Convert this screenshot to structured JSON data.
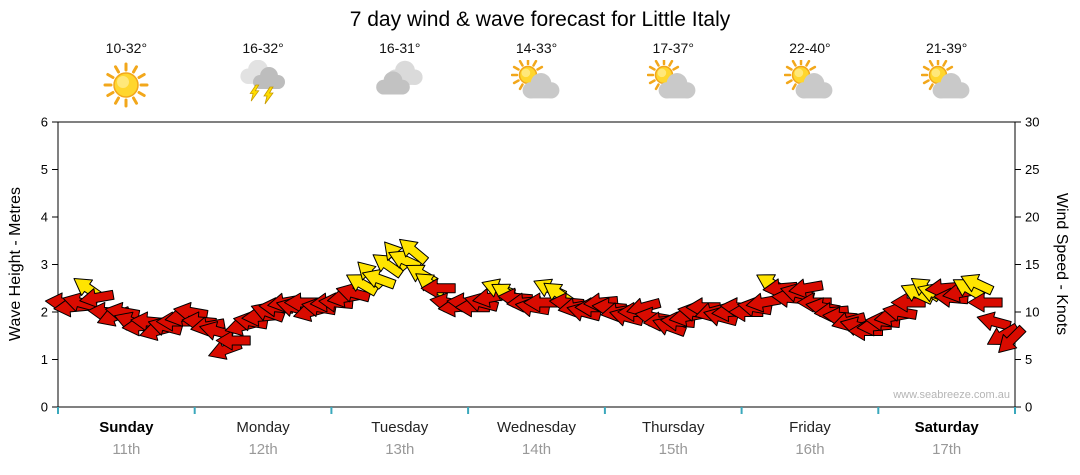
{
  "title": "7 day wind & wave forecast for Little Italy",
  "watermark": "www.seabreeze.com.au",
  "days": [
    {
      "name": "Sunday",
      "date": "11th",
      "temp": "10-32°",
      "icon": "sunny",
      "weekend": true
    },
    {
      "name": "Monday",
      "date": "12th",
      "temp": "16-32°",
      "icon": "storm",
      "weekend": false
    },
    {
      "name": "Tuesday",
      "date": "13th",
      "temp": "16-31°",
      "icon": "cloudy",
      "weekend": false
    },
    {
      "name": "Wednesday",
      "date": "14th",
      "temp": "14-33°",
      "icon": "partly-cloudy",
      "weekend": false
    },
    {
      "name": "Thursday",
      "date": "15th",
      "temp": "17-37°",
      "icon": "partly-cloudy",
      "weekend": false
    },
    {
      "name": "Friday",
      "date": "16th",
      "temp": "22-40°",
      "icon": "partly-cloudy",
      "weekend": false
    },
    {
      "name": "Saturday",
      "date": "17th",
      "temp": "21-39°",
      "icon": "partly-cloudy",
      "weekend": true
    }
  ],
  "chart_data": {
    "type": "scatter",
    "title": "7 day wind & wave forecast for Little Italy",
    "x_categories": [
      "Sunday 11th",
      "Monday 12th",
      "Tuesday 13th",
      "Wednesday 14th",
      "Thursday 15th",
      "Friday 16th",
      "Saturday 17th"
    ],
    "left_axis": {
      "label": "Wave Height - Metres",
      "min": 0,
      "max": 6,
      "ticks": [
        0,
        1,
        2,
        3,
        4,
        5,
        6
      ]
    },
    "right_axis": {
      "label": "Wind Speed - Knots",
      "min": 0,
      "max": 30,
      "ticks": [
        0,
        5,
        10,
        15,
        20,
        25,
        30
      ]
    },
    "grid": false,
    "legend": "none",
    "series_unit": "knots",
    "colors": {
      "red": "#D90B00",
      "yellow": "#FFE400",
      "day_tick": "#3AA8BC"
    },
    "points_per_day": 16,
    "points_format": [
      "wind_speed_knots",
      "arrow_rotation_deg",
      "color_index_0red_1yellow"
    ],
    "points": [
      [
        11,
        185,
        0
      ],
      [
        10.5,
        175,
        0
      ],
      [
        11,
        195,
        0
      ],
      [
        12.5,
        215,
        1
      ],
      [
        11.5,
        170,
        0
      ],
      [
        10,
        185,
        0
      ],
      [
        9.5,
        160,
        0
      ],
      [
        10,
        190,
        0
      ],
      [
        9,
        200,
        0
      ],
      [
        8.5,
        175,
        0
      ],
      [
        9,
        185,
        0
      ],
      [
        8,
        165,
        0
      ],
      [
        8.5,
        195,
        0
      ],
      [
        9,
        180,
        0
      ],
      [
        9.5,
        170,
        0
      ],
      [
        10,
        190,
        0
      ],
      [
        9,
        185,
        0
      ],
      [
        8.5,
        170,
        0
      ],
      [
        8,
        195,
        0
      ],
      [
        6,
        160,
        0
      ],
      [
        7,
        180,
        0
      ],
      [
        8.5,
        165,
        0
      ],
      [
        9,
        190,
        0
      ],
      [
        9.5,
        175,
        0
      ],
      [
        10,
        200,
        0
      ],
      [
        10.5,
        185,
        0
      ],
      [
        11,
        170,
        0
      ],
      [
        10.5,
        195,
        0
      ],
      [
        11,
        180,
        0
      ],
      [
        10,
        165,
        0
      ],
      [
        10.5,
        190,
        0
      ],
      [
        11,
        175,
        0
      ],
      [
        11,
        185,
        0
      ],
      [
        11.5,
        170,
        0
      ],
      [
        12,
        195,
        0
      ],
      [
        13,
        210,
        1
      ],
      [
        14,
        225,
        1
      ],
      [
        13.5,
        200,
        1
      ],
      [
        15,
        215,
        1
      ],
      [
        16,
        230,
        1
      ],
      [
        15.5,
        205,
        1
      ],
      [
        16.5,
        220,
        1
      ],
      [
        14,
        210,
        1
      ],
      [
        13,
        215,
        1
      ],
      [
        12.5,
        180,
        0
      ],
      [
        11,
        190,
        0
      ],
      [
        10.5,
        175,
        0
      ],
      [
        11,
        185,
        0
      ],
      [
        10.5,
        180,
        0
      ],
      [
        11,
        195,
        0
      ],
      [
        11.5,
        170,
        0
      ],
      [
        12.5,
        200,
        1
      ],
      [
        12,
        210,
        1
      ],
      [
        11.5,
        185,
        0
      ],
      [
        11,
        175,
        0
      ],
      [
        10.5,
        190,
        0
      ],
      [
        11,
        180,
        0
      ],
      [
        12.5,
        205,
        1
      ],
      [
        12,
        215,
        1
      ],
      [
        11,
        185,
        0
      ],
      [
        10.5,
        170,
        0
      ],
      [
        10,
        195,
        0
      ],
      [
        10.5,
        180,
        0
      ],
      [
        11,
        175,
        0
      ],
      [
        10.5,
        185,
        0
      ],
      [
        10,
        170,
        0
      ],
      [
        9.5,
        195,
        0
      ],
      [
        10,
        180,
        0
      ],
      [
        10.5,
        165,
        0
      ],
      [
        9.5,
        190,
        0
      ],
      [
        9,
        175,
        0
      ],
      [
        8.5,
        200,
        0
      ],
      [
        9,
        185,
        0
      ],
      [
        9.5,
        170,
        0
      ],
      [
        10,
        190,
        0
      ],
      [
        10.5,
        180,
        0
      ],
      [
        10,
        165,
        0
      ],
      [
        9.5,
        195,
        0
      ],
      [
        10,
        175,
        0
      ],
      [
        10.5,
        185,
        0
      ],
      [
        10,
        180,
        0
      ],
      [
        10.5,
        190,
        0
      ],
      [
        11,
        170,
        0
      ],
      [
        13,
        210,
        1
      ],
      [
        12.5,
        175,
        0
      ],
      [
        11.5,
        185,
        0
      ],
      [
        12,
        195,
        0
      ],
      [
        12.5,
        170,
        0
      ],
      [
        11,
        180,
        0
      ],
      [
        10.5,
        190,
        0
      ],
      [
        10,
        175,
        0
      ],
      [
        9.5,
        185,
        0
      ],
      [
        9,
        165,
        0
      ],
      [
        8.5,
        195,
        0
      ],
      [
        8,
        180,
        0
      ],
      [
        8.5,
        175,
        0
      ],
      [
        9,
        185,
        0
      ],
      [
        9.5,
        170,
        0
      ],
      [
        10,
        190,
        0
      ],
      [
        11,
        180,
        0
      ],
      [
        12,
        205,
        1
      ],
      [
        12.5,
        215,
        1
      ],
      [
        12,
        200,
        1
      ],
      [
        12.5,
        175,
        0
      ],
      [
        11.5,
        185,
        0
      ],
      [
        12,
        170,
        0
      ],
      [
        12.5,
        210,
        1
      ],
      [
        13,
        205,
        1
      ],
      [
        11,
        180,
        0
      ],
      [
        9,
        195,
        0
      ],
      [
        7.5,
        150,
        0
      ],
      [
        7,
        135,
        0
      ]
    ]
  }
}
